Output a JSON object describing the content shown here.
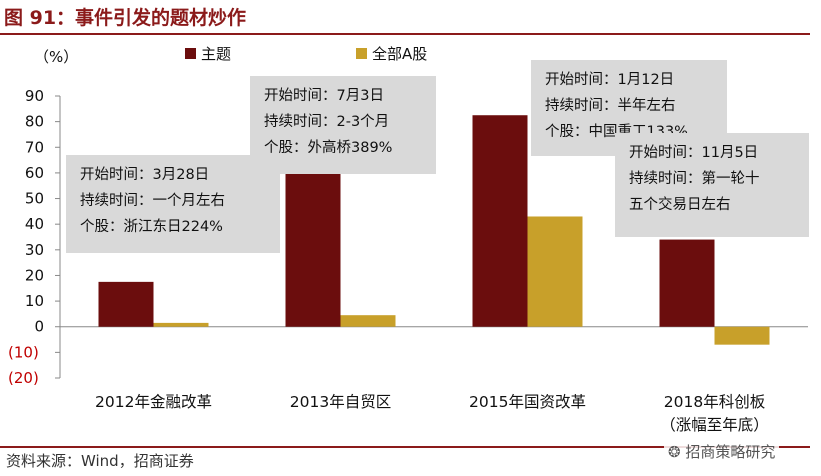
{
  "figure": {
    "title": "图 91：事件引发的题材炒作",
    "source": "资料来源：Wind，招商证券",
    "watermark": "招商策略研究"
  },
  "colors": {
    "theme": "#6b0d0d",
    "market": "#c8a02a",
    "accent": "#8b1a1a",
    "annotation_bg": "#d9d9d9"
  },
  "chart_data": {
    "type": "bar",
    "unit_label": "（%）",
    "categories": [
      "2012年金融改革",
      "2013年自贸区",
      "2015年国资改革",
      "2018年科创板"
    ],
    "category_sublabels": [
      "",
      "",
      "",
      "（涨幅至年底）"
    ],
    "series": [
      {
        "name": "主题",
        "values": [
          17.5,
          60.5,
          82.5,
          34
        ]
      },
      {
        "name": "全部A股",
        "values": [
          1.5,
          4.5,
          43,
          -7
        ]
      }
    ],
    "ylim": [
      -20,
      90
    ],
    "yticks": [
      {
        "value": 90,
        "label": "90"
      },
      {
        "value": 80,
        "label": "80"
      },
      {
        "value": 70,
        "label": "70"
      },
      {
        "value": 60,
        "label": "60"
      },
      {
        "value": 50,
        "label": "50"
      },
      {
        "value": 40,
        "label": "40"
      },
      {
        "value": 30,
        "label": "30"
      },
      {
        "value": 20,
        "label": "20"
      },
      {
        "value": 10,
        "label": "10"
      },
      {
        "value": 0,
        "label": "0"
      },
      {
        "value": -10,
        "label": "(10)"
      },
      {
        "value": -20,
        "label": "(20)"
      }
    ],
    "grid": false,
    "legend": "top",
    "annotations": [
      {
        "lines": [
          "开始时间：3月28日",
          "持续时间：一个月左右",
          "个股：浙江东日224%"
        ]
      },
      {
        "lines": [
          "开始时间：7月3日",
          "持续时间：2-3个月",
          "个股：外高桥389%"
        ]
      },
      {
        "lines": [
          "开始时间：1月12日",
          "持续时间：半年左右",
          "个股：中国重工133%"
        ]
      },
      {
        "lines": [
          "开始时间：11月5日",
          "持续时间：第一轮十",
          "五个交易日左右"
        ]
      }
    ]
  }
}
